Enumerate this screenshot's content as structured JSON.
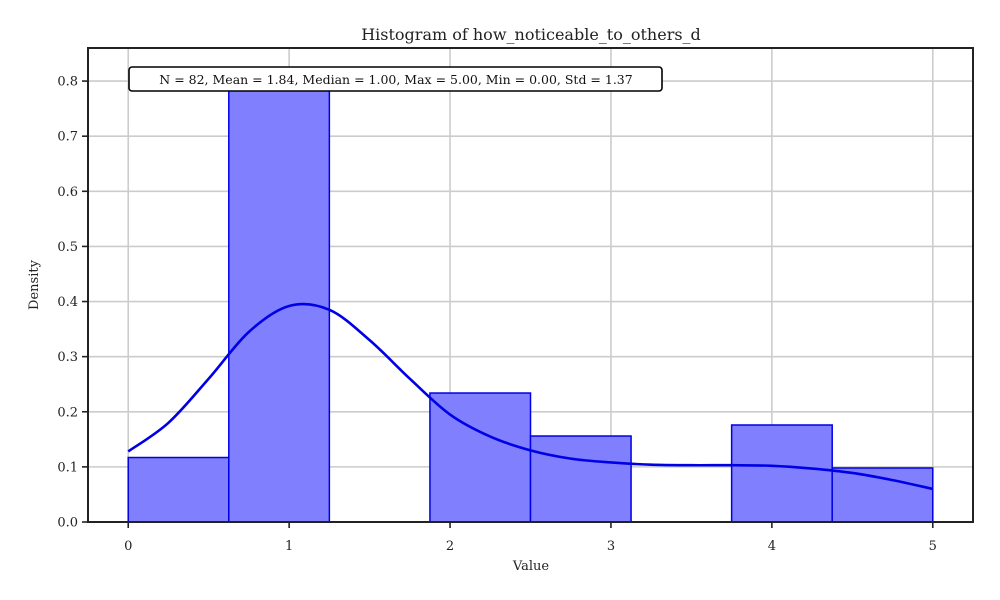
{
  "chart_data": {
    "type": "bar",
    "title": "Histogram of how_noticeable_to_others_d",
    "xlabel": "Value",
    "ylabel": "Density",
    "xlim": [
      -0.25,
      5.25
    ],
    "ylim": [
      0,
      0.86
    ],
    "xticks": [
      0,
      1,
      2,
      3,
      4,
      5
    ],
    "yticks": [
      0.0,
      0.1,
      0.2,
      0.3,
      0.4,
      0.5,
      0.6,
      0.7,
      0.8
    ],
    "ytick_labels": [
      "0.0",
      "0.1",
      "0.2",
      "0.3",
      "0.4",
      "0.5",
      "0.6",
      "0.7",
      "0.8"
    ],
    "grid": true,
    "bins": [
      {
        "x0": 0.0,
        "x1": 0.625,
        "density": 0.117
      },
      {
        "x0": 0.625,
        "x1": 1.25,
        "density": 0.79
      },
      {
        "x0": 1.25,
        "x1": 1.875,
        "density": 0.0
      },
      {
        "x0": 1.875,
        "x1": 2.5,
        "density": 0.234
      },
      {
        "x0": 2.5,
        "x1": 3.125,
        "density": 0.156
      },
      {
        "x0": 3.125,
        "x1": 3.75,
        "density": 0.0
      },
      {
        "x0": 3.75,
        "x1": 4.375,
        "density": 0.176
      },
      {
        "x0": 4.375,
        "x1": 5.0,
        "density": 0.098
      }
    ],
    "kde": {
      "name": "KDE",
      "x": [
        0.0,
        0.25,
        0.5,
        0.75,
        1.0,
        1.25,
        1.5,
        1.75,
        2.0,
        2.25,
        2.5,
        2.75,
        3.0,
        3.25,
        3.5,
        3.75,
        4.0,
        4.25,
        4.5,
        4.75,
        5.0
      ],
      "y": [
        0.128,
        0.18,
        0.26,
        0.345,
        0.392,
        0.385,
        0.33,
        0.26,
        0.195,
        0.155,
        0.13,
        0.115,
        0.108,
        0.104,
        0.103,
        0.103,
        0.102,
        0.097,
        0.089,
        0.076,
        0.06
      ]
    },
    "annotation": "N = 82, Mean = 1.84, Median = 1.00, Max = 5.00, Min = 0.00, Std = 1.37",
    "colors": {
      "bar_fill": "#8080ff",
      "bar_edge": "#0000e6",
      "kde_line": "#0000e6",
      "grid": "#cccccc",
      "axis": "#222222"
    }
  }
}
